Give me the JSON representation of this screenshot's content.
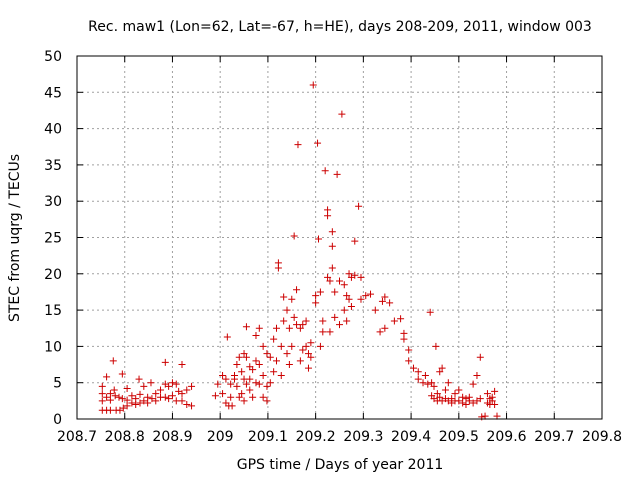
{
  "chart_data": {
    "type": "scatter",
    "title": "Rec. maw1 (Lon=62, Lat=-67, h=HE), days 208-209, 2011, window 003",
    "xlabel": "GPS time / Days of year 2011",
    "ylabel": "STEC from uqrg / TECUs",
    "xlim": [
      208.7,
      209.8
    ],
    "ylim": [
      0,
      50
    ],
    "grid": true,
    "marker": "plus",
    "marker_color": "#cc0000",
    "x_ticks": [
      {
        "value": 208.7,
        "label": "208.7"
      },
      {
        "value": 208.8,
        "label": "208.8"
      },
      {
        "value": 208.9,
        "label": "208.9"
      },
      {
        "value": 209.0,
        "label": "209"
      },
      {
        "value": 209.1,
        "label": "209.1"
      },
      {
        "value": 209.2,
        "label": "209.2"
      },
      {
        "value": 209.3,
        "label": "209.3"
      },
      {
        "value": 209.4,
        "label": "209.4"
      },
      {
        "value": 209.5,
        "label": "209.5"
      },
      {
        "value": 209.6,
        "label": "209.6"
      },
      {
        "value": 209.7,
        "label": "209.7"
      },
      {
        "value": 209.8,
        "label": "209.8"
      }
    ],
    "y_ticks": [
      {
        "value": 0,
        "label": "0"
      },
      {
        "value": 5,
        "label": "5"
      },
      {
        "value": 10,
        "label": "10"
      },
      {
        "value": 15,
        "label": "15"
      },
      {
        "value": 20,
        "label": "20"
      },
      {
        "value": 25,
        "label": "25"
      },
      {
        "value": 30,
        "label": "30"
      },
      {
        "value": 35,
        "label": "35"
      },
      {
        "value": 40,
        "label": "40"
      },
      {
        "value": 45,
        "label": "45"
      },
      {
        "value": 50,
        "label": "50"
      }
    ],
    "points": [
      [
        208.753,
        4.5
      ],
      [
        208.753,
        3.5
      ],
      [
        208.753,
        2.5
      ],
      [
        208.753,
        1.2
      ],
      [
        208.762,
        5.8
      ],
      [
        208.762,
        3.0
      ],
      [
        208.762,
        1.2
      ],
      [
        208.77,
        3.5
      ],
      [
        208.77,
        2.6
      ],
      [
        208.77,
        1.2
      ],
      [
        208.776,
        8.0
      ],
      [
        208.778,
        4.0
      ],
      [
        208.78,
        3.2
      ],
      [
        208.782,
        1.2
      ],
      [
        208.788,
        3.0
      ],
      [
        208.79,
        1.2
      ],
      [
        208.795,
        6.2
      ],
      [
        208.795,
        2.8
      ],
      [
        208.797,
        1.5
      ],
      [
        208.805,
        4.2
      ],
      [
        208.805,
        2.6
      ],
      [
        208.805,
        1.8
      ],
      [
        208.815,
        3.2
      ],
      [
        208.815,
        2.2
      ],
      [
        208.823,
        2.8
      ],
      [
        208.823,
        2.0
      ],
      [
        208.83,
        5.5
      ],
      [
        208.832,
        3.4
      ],
      [
        208.832,
        2.2
      ],
      [
        208.84,
        4.5
      ],
      [
        208.84,
        2.5
      ],
      [
        208.848,
        3.0
      ],
      [
        208.848,
        2.2
      ],
      [
        208.855,
        5.0
      ],
      [
        208.857,
        2.8
      ],
      [
        208.865,
        3.5
      ],
      [
        208.865,
        2.5
      ],
      [
        208.875,
        4.0
      ],
      [
        208.875,
        3.0
      ],
      [
        208.885,
        7.8
      ],
      [
        208.885,
        4.8
      ],
      [
        208.885,
        3.0
      ],
      [
        208.892,
        4.5
      ],
      [
        208.892,
        2.8
      ],
      [
        208.9,
        5.0
      ],
      [
        208.9,
        3.2
      ],
      [
        208.908,
        4.8
      ],
      [
        208.908,
        2.5
      ],
      [
        208.913,
        3.8
      ],
      [
        208.92,
        7.5
      ],
      [
        208.92,
        3.5
      ],
      [
        208.92,
        2.5
      ],
      [
        208.93,
        4.0
      ],
      [
        208.93,
        2.0
      ],
      [
        208.94,
        4.5
      ],
      [
        208.94,
        1.8
      ],
      [
        208.99,
        3.2
      ],
      [
        208.995,
        4.8
      ],
      [
        209.005,
        3.5
      ],
      [
        209.005,
        6.0
      ],
      [
        209.012,
        5.5
      ],
      [
        209.012,
        2.2
      ],
      [
        209.015,
        11.3
      ],
      [
        209.018,
        1.8
      ],
      [
        209.022,
        4.8
      ],
      [
        209.022,
        3.0
      ],
      [
        209.025,
        1.8
      ],
      [
        209.03,
        6.0
      ],
      [
        209.03,
        5.5
      ],
      [
        209.035,
        7.5
      ],
      [
        209.035,
        4.5
      ],
      [
        209.04,
        8.5
      ],
      [
        209.04,
        3.0
      ],
      [
        209.045,
        6.5
      ],
      [
        209.045,
        3.5
      ],
      [
        209.05,
        9.0
      ],
      [
        209.05,
        5.5
      ],
      [
        209.05,
        2.5
      ],
      [
        209.055,
        12.7
      ],
      [
        209.055,
        8.5
      ],
      [
        209.055,
        4.8
      ],
      [
        209.062,
        7.2
      ],
      [
        209.062,
        5.5
      ],
      [
        209.062,
        4.0
      ],
      [
        209.068,
        6.8
      ],
      [
        209.068,
        3.0
      ],
      [
        209.075,
        11.5
      ],
      [
        209.075,
        8.0
      ],
      [
        209.075,
        5.0
      ],
      [
        209.082,
        12.5
      ],
      [
        209.082,
        7.5
      ],
      [
        209.082,
        4.8
      ],
      [
        209.09,
        10.0
      ],
      [
        209.09,
        6.0
      ],
      [
        209.09,
        3.0
      ],
      [
        209.098,
        9.0
      ],
      [
        209.098,
        4.5
      ],
      [
        209.098,
        2.5
      ],
      [
        209.105,
        8.5
      ],
      [
        209.105,
        5.0
      ],
      [
        209.112,
        11.0
      ],
      [
        209.112,
        6.5
      ],
      [
        209.118,
        12.5
      ],
      [
        209.118,
        8.0
      ],
      [
        209.122,
        21.5
      ],
      [
        209.122,
        20.8
      ],
      [
        209.128,
        10.0
      ],
      [
        209.128,
        6.0
      ],
      [
        209.133,
        16.8
      ],
      [
        209.133,
        13.5
      ],
      [
        209.14,
        15.0
      ],
      [
        209.14,
        9.0
      ],
      [
        209.145,
        12.5
      ],
      [
        209.145,
        7.5
      ],
      [
        209.15,
        16.5
      ],
      [
        209.15,
        10.0
      ],
      [
        209.155,
        25.2
      ],
      [
        209.155,
        14.0
      ],
      [
        209.16,
        17.8
      ],
      [
        209.16,
        13.0
      ],
      [
        209.163,
        37.8
      ],
      [
        209.168,
        12.5
      ],
      [
        209.168,
        8.0
      ],
      [
        209.173,
        13.0
      ],
      [
        209.173,
        9.5
      ],
      [
        209.18,
        13.5
      ],
      [
        209.18,
        10.0
      ],
      [
        209.185,
        9.0
      ],
      [
        209.185,
        7.0
      ],
      [
        209.19,
        10.5
      ],
      [
        209.19,
        8.5
      ],
      [
        209.195,
        46.0
      ],
      [
        209.2,
        17.0
      ],
      [
        209.2,
        16.0
      ],
      [
        209.204,
        38.0
      ],
      [
        209.206,
        24.8
      ],
      [
        209.21,
        17.5
      ],
      [
        209.21,
        10.0
      ],
      [
        209.215,
        13.5
      ],
      [
        209.215,
        12.0
      ],
      [
        209.22,
        34.2
      ],
      [
        209.225,
        28.8
      ],
      [
        209.225,
        28.0
      ],
      [
        209.225,
        19.5
      ],
      [
        209.23,
        19.0
      ],
      [
        209.23,
        12.0
      ],
      [
        209.235,
        25.8
      ],
      [
        209.235,
        23.8
      ],
      [
        209.235,
        20.8
      ],
      [
        209.24,
        17.5
      ],
      [
        209.24,
        14.0
      ],
      [
        209.245,
        33.7
      ],
      [
        209.25,
        19.0
      ],
      [
        209.25,
        13.0
      ],
      [
        209.255,
        42.0
      ],
      [
        209.26,
        18.5
      ],
      [
        209.26,
        15.0
      ],
      [
        209.265,
        17.0
      ],
      [
        209.265,
        13.5
      ],
      [
        209.27,
        20.0
      ],
      [
        209.27,
        16.5
      ],
      [
        209.275,
        19.5
      ],
      [
        209.275,
        15.5
      ],
      [
        209.282,
        24.5
      ],
      [
        209.282,
        19.8
      ],
      [
        209.29,
        29.3
      ],
      [
        209.295,
        19.5
      ],
      [
        209.295,
        16.5
      ],
      [
        209.305,
        17.0
      ],
      [
        209.315,
        17.2
      ],
      [
        209.325,
        15.0
      ],
      [
        209.335,
        12.0
      ],
      [
        209.34,
        16.2
      ],
      [
        209.345,
        16.8
      ],
      [
        209.345,
        12.5
      ],
      [
        209.355,
        16.0
      ],
      [
        209.365,
        13.5
      ],
      [
        209.378,
        13.8
      ],
      [
        209.385,
        11.8
      ],
      [
        209.385,
        11.0
      ],
      [
        209.395,
        9.5
      ],
      [
        209.395,
        8.0
      ],
      [
        209.405,
        7.0
      ],
      [
        209.415,
        6.5
      ],
      [
        209.415,
        5.5
      ],
      [
        209.425,
        5.0
      ],
      [
        209.43,
        6.0
      ],
      [
        209.435,
        4.8
      ],
      [
        209.44,
        14.7
      ],
      [
        209.443,
        5.0
      ],
      [
        209.443,
        3.2
      ],
      [
        209.448,
        4.5
      ],
      [
        209.448,
        2.8
      ],
      [
        209.452,
        10.0
      ],
      [
        209.455,
        3.5
      ],
      [
        209.455,
        2.5
      ],
      [
        209.46,
        6.5
      ],
      [
        209.46,
        3.0
      ],
      [
        209.465,
        7.0
      ],
      [
        209.465,
        2.5
      ],
      [
        209.472,
        4.0
      ],
      [
        209.472,
        2.8
      ],
      [
        209.478,
        5.0
      ],
      [
        209.478,
        2.5
      ],
      [
        209.485,
        2.8
      ],
      [
        209.485,
        2.2
      ],
      [
        209.492,
        3.5
      ],
      [
        209.492,
        2.5
      ],
      [
        209.5,
        4.0
      ],
      [
        209.5,
        2.5
      ],
      [
        209.508,
        3.0
      ],
      [
        209.508,
        2.2
      ],
      [
        209.515,
        2.8
      ],
      [
        209.515,
        2.0
      ],
      [
        209.522,
        3.0
      ],
      [
        209.522,
        2.5
      ],
      [
        209.53,
        4.8
      ],
      [
        209.53,
        2.2
      ],
      [
        209.538,
        6.0
      ],
      [
        209.538,
        2.5
      ],
      [
        209.545,
        8.5
      ],
      [
        209.545,
        2.8
      ],
      [
        209.548,
        0.3
      ],
      [
        209.555,
        0.4
      ],
      [
        209.56,
        3.5
      ],
      [
        209.56,
        2.2
      ],
      [
        209.565,
        2.8
      ],
      [
        209.565,
        2.0
      ],
      [
        209.57,
        3.0
      ],
      [
        209.57,
        2.5
      ],
      [
        209.575,
        3.8
      ],
      [
        209.575,
        2.0
      ],
      [
        209.58,
        0.4
      ]
    ]
  }
}
